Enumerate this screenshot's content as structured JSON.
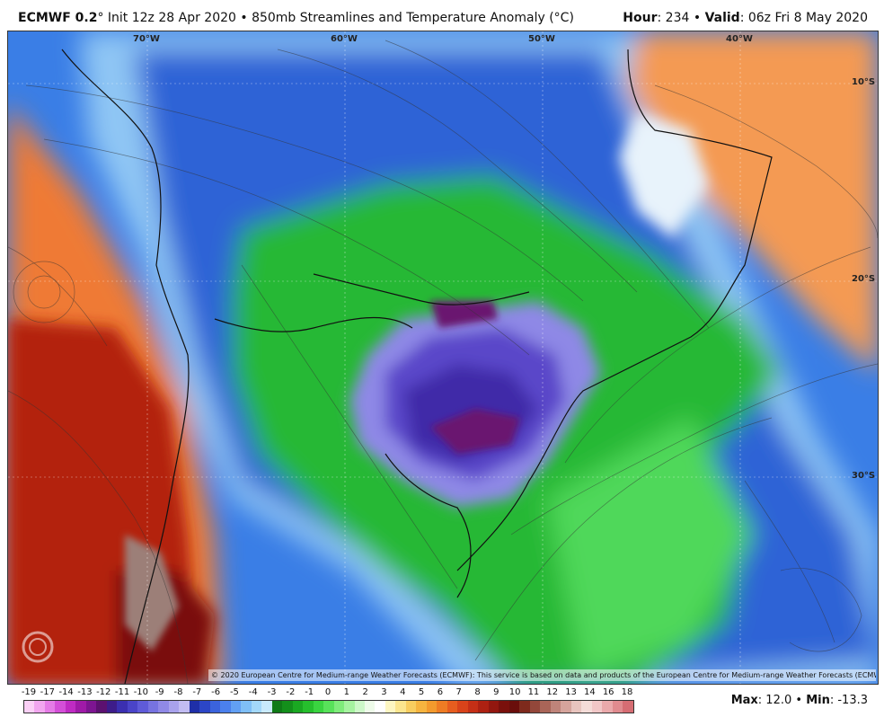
{
  "header": {
    "model": "ECMWF 0.2",
    "run": "° Init 12z 28 Apr 2020 • 850mb Streamlines and Temperature Anomaly (°C)",
    "hour_label": "Hour",
    "hour_value": ": 234 • ",
    "valid_label": "Valid",
    "valid_value": ": 06z Fri 8 May 2020"
  },
  "map": {
    "longitude_labels": [
      "70°W",
      "60°W",
      "50°W",
      "40°W"
    ],
    "latitude_labels": [
      "10°S",
      "20°S",
      "30°S"
    ],
    "copyright": "© 2020 European Centre for Medium-range Weather Forecasts (ECMWF): This service is based on data and products of the European Centre for Medium-range Weather Forecasts (ECMWF).",
    "watermark": "WeatherBELL"
  },
  "legend": {
    "labels": [
      "-19",
      "-17",
      "-14",
      "-13",
      "-12",
      "-11",
      "-10",
      "-9",
      "-8",
      "-7",
      "-6",
      "-5",
      "-4",
      "-3",
      "-2",
      "-1",
      "0",
      "1",
      "2",
      "3",
      "4",
      "5",
      "6",
      "7",
      "8",
      "9",
      "10",
      "11",
      "12",
      "13",
      "14",
      "16",
      "18"
    ],
    "colors": [
      "#fbd0f6",
      "#f2a6ef",
      "#e57be6",
      "#d44fd8",
      "#bf2bc3",
      "#9f1aa8",
      "#7d1591",
      "#5c1170",
      "#3d1c8a",
      "#3b2fb0",
      "#4a44c8",
      "#5f5bd8",
      "#7773e0",
      "#9089e6",
      "#a9a2ec",
      "#c2bcf2",
      "#1f2fa8",
      "#2c46c6",
      "#3b63dc",
      "#4b80ec",
      "#62a0f4",
      "#7fbff7",
      "#a3d8fa",
      "#c9eafc",
      "#0f7a17",
      "#138f1b",
      "#1aa822",
      "#26bf2d",
      "#3ad440",
      "#58e25a",
      "#7fec7b",
      "#a6f3a0",
      "#cdf8c8",
      "#eefbe9",
      "#ffffff",
      "#fdf6c2",
      "#fbe58e",
      "#f8cd5f",
      "#f6b43f",
      "#f39a2d",
      "#ee7c24",
      "#e65d1f",
      "#d8431a",
      "#c52f16",
      "#ad2112",
      "#93170f",
      "#7a100c",
      "#6a0e0b",
      "#7e2a1c",
      "#93473a",
      "#a96558",
      "#bf847a",
      "#d5a49c",
      "#e8c4be",
      "#f4dcd8",
      "#f1c7c7",
      "#eaa9ab",
      "#e08b8f",
      "#d66d73"
    ]
  },
  "stats": {
    "max_label": "Max",
    "max_value": ": 12.0 • ",
    "min_label": "Min",
    "min_value": ": -13.3"
  },
  "colors": {
    "ocean_cold": "#2c6fe0",
    "warm_anomaly": "#f08a3c",
    "strong_warm": "#b3220f",
    "cool_green": "#2fc23a",
    "strong_cold": "#5a3fc8",
    "extreme_cold": "#6a1470"
  }
}
